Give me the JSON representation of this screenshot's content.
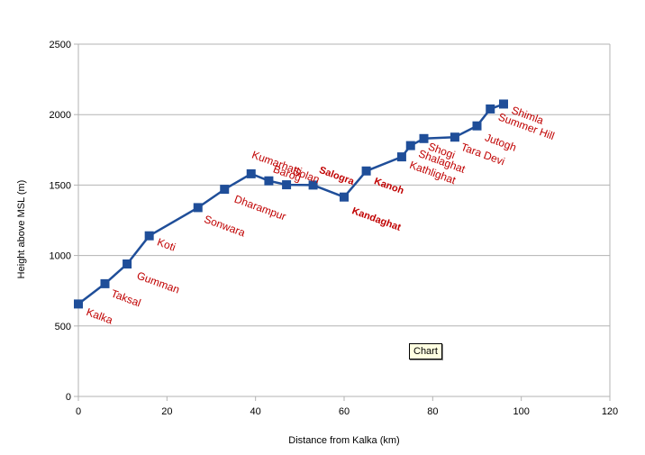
{
  "chart_data": {
    "type": "line",
    "xlabel": "Distance from Kalka (km)",
    "ylabel": "Height above MSL (m)",
    "xlim": [
      0,
      120
    ],
    "ylim": [
      0,
      2500
    ],
    "x_ticks": [
      "0",
      "20",
      "40",
      "60",
      "80",
      "100",
      "120"
    ],
    "y_ticks": [
      "0",
      "500",
      "1000",
      "1500",
      "2000",
      "2500"
    ],
    "grid": "horizontal",
    "legend": "none",
    "series_color": "#1f4e99",
    "label_color": "#c00000",
    "points": [
      {
        "name": "Kalka",
        "x": 0,
        "y": 656
      },
      {
        "name": "Taksal",
        "x": 6,
        "y": 800
      },
      {
        "name": "Gumman",
        "x": 11,
        "y": 940
      },
      {
        "name": "Koti",
        "x": 16,
        "y": 1140
      },
      {
        "name": "Sonwara",
        "x": 27,
        "y": 1340
      },
      {
        "name": "Dharampur",
        "x": 33,
        "y": 1470
      },
      {
        "name": "Kumarhatti",
        "x": 39,
        "y": 1580
      },
      {
        "name": "Barog",
        "x": 43,
        "y": 1530
      },
      {
        "name": "Solan",
        "x": 47,
        "y": 1502
      },
      {
        "name": "Salogra",
        "x": 53,
        "y": 1500
      },
      {
        "name": "Kandaghat",
        "x": 60,
        "y": 1415
      },
      {
        "name": "Kanoh",
        "x": 65,
        "y": 1600
      },
      {
        "name": "Kathlighat",
        "x": 73,
        "y": 1700
      },
      {
        "name": "Shalaghat",
        "x": 75,
        "y": 1780
      },
      {
        "name": "Shogi",
        "x": 78,
        "y": 1830
      },
      {
        "name": "Tara Devi",
        "x": 85,
        "y": 1840
      },
      {
        "name": "Jutogh",
        "x": 90,
        "y": 1920
      },
      {
        "name": "Summer Hill",
        "x": 93,
        "y": 2040
      },
      {
        "name": "Shimla",
        "x": 96,
        "y": 2075
      }
    ]
  },
  "tooltip": "Chart"
}
